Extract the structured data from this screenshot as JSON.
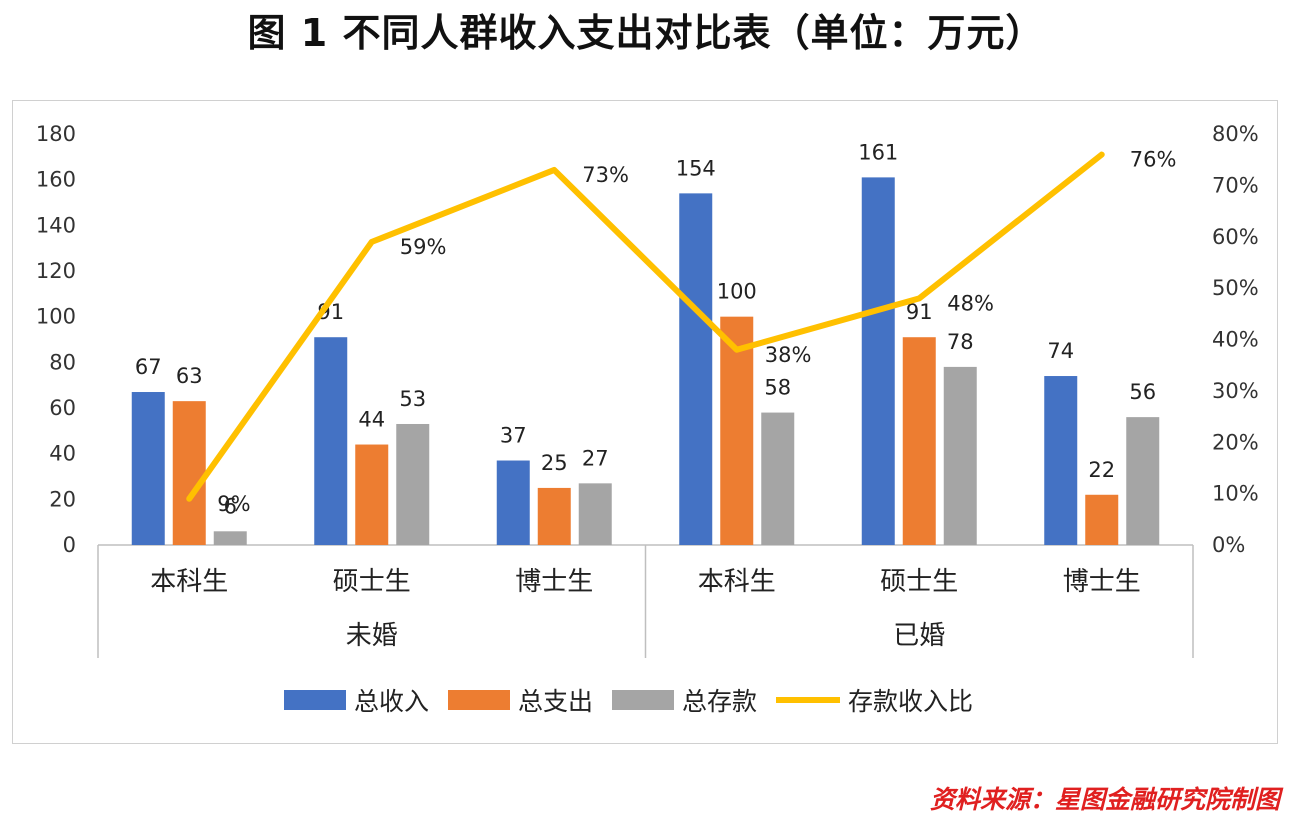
{
  "title": "图 1   不同人群收入支出对比表（单位：万元）",
  "source": "资料来源：星图金融研究院制图",
  "chart_data": {
    "type": "bar",
    "groups": [
      "未婚",
      "已婚"
    ],
    "categories": [
      "本科生",
      "硕士生",
      "博士生",
      "本科生",
      "硕士生",
      "博士生"
    ],
    "series": [
      {
        "name": "总收入",
        "color": "#4472c4",
        "values": [
          67,
          91,
          37,
          154,
          161,
          74
        ]
      },
      {
        "name": "总支出",
        "color": "#ed7d31",
        "values": [
          63,
          44,
          25,
          100,
          91,
          22
        ]
      },
      {
        "name": "总存款",
        "color": "#a5a5a5",
        "values": [
          6,
          53,
          27,
          58,
          78,
          56
        ]
      }
    ],
    "line": {
      "name": "存款收入比",
      "color": "#ffc000",
      "axis": "right",
      "values": [
        9,
        59,
        73,
        38,
        48,
        76
      ],
      "labels": [
        "9%",
        "59%",
        "73%",
        "38%",
        "48%",
        "76%"
      ]
    },
    "ylim": [
      0,
      180
    ],
    "yticks": [
      "0",
      "20",
      "40",
      "60",
      "80",
      "100",
      "120",
      "140",
      "160",
      "180"
    ],
    "y2lim": [
      0,
      80
    ],
    "y2ticks": [
      "0%",
      "10%",
      "20%",
      "30%",
      "40%",
      "50%",
      "60%",
      "70%",
      "80%"
    ],
    "legend": [
      "总收入",
      "总支出",
      "总存款",
      "存款收入比"
    ]
  }
}
